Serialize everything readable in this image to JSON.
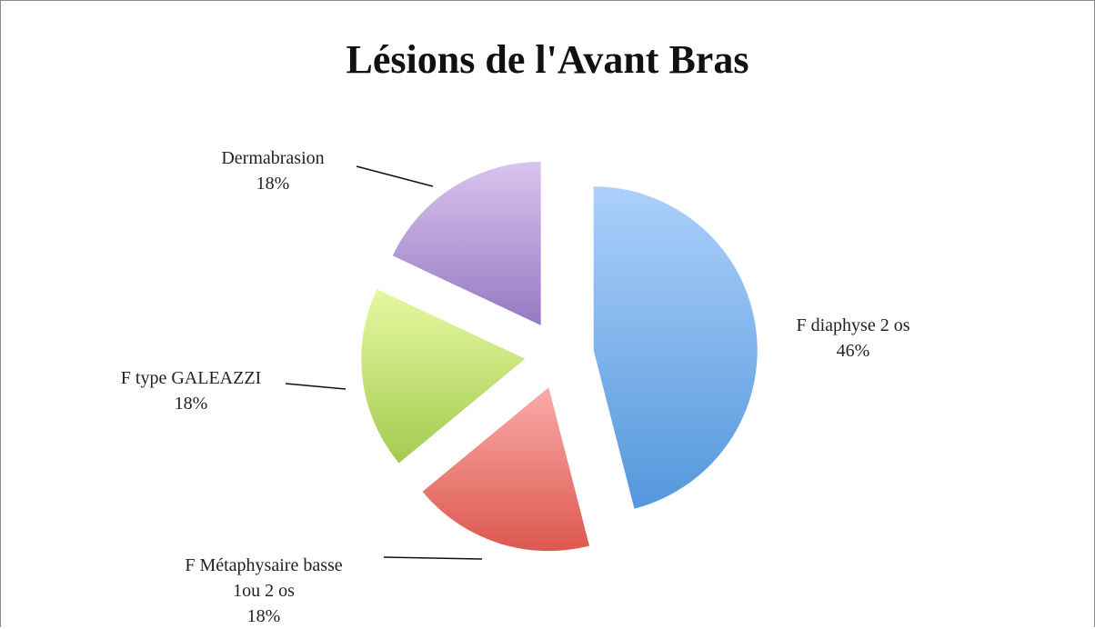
{
  "chart_data": {
    "type": "pie",
    "title": "Lésions de l'Avant Bras",
    "categories": [
      "F diaphyse 2 os",
      "F Métaphysaire basse 1ou 2 os",
      "F type GALEAZZI",
      "Dermabrasion"
    ],
    "values": [
      46,
      18,
      18,
      18
    ],
    "value_labels": [
      "46%",
      "18%",
      "18%",
      "18%"
    ],
    "colors": [
      [
        "#acd0fa",
        "#5497dc"
      ],
      [
        "#f9aba7",
        "#dd5850"
      ],
      [
        "#e6f8a2",
        "#a3cb4e"
      ],
      [
        "#d8c4ee",
        "#9679c2"
      ]
    ]
  }
}
